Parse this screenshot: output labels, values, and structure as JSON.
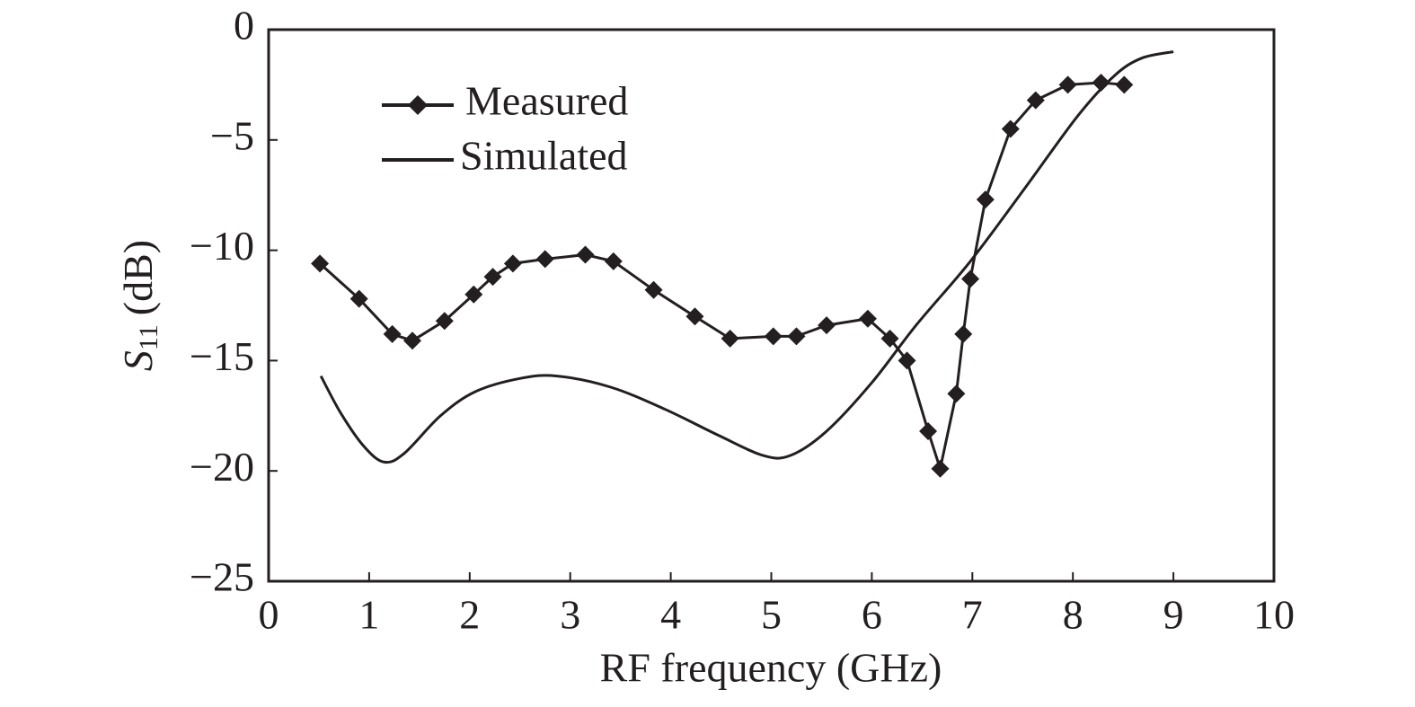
{
  "chart_data": {
    "type": "line",
    "xlabel": "RF frequency (GHz)",
    "ylabel": {
      "symbol": "S",
      "subscript": "11",
      "unit": "(dB)"
    },
    "xlim": [
      0,
      10
    ],
    "xticks": [
      0,
      1,
      2,
      3,
      4,
      5,
      6,
      7,
      8,
      9,
      10
    ],
    "ylim": [
      -25,
      0
    ],
    "yticks": [
      {
        "value": -25,
        "label": "−25"
      },
      {
        "value": -20,
        "label": "−20"
      },
      {
        "value": -15,
        "label": "−15"
      },
      {
        "value": -10,
        "label": "−10"
      },
      {
        "value": -5,
        "label": "−5"
      },
      0
    ],
    "grid": false,
    "legend": "upper left",
    "series": [
      {
        "name": "Measured",
        "color": "#231f20",
        "marker": "diamond",
        "smooth": false,
        "x": [
          0.51,
          0.9,
          1.23,
          1.43,
          1.75,
          2.04,
          2.23,
          2.43,
          2.75,
          3.15,
          3.43,
          3.83,
          4.24,
          4.59,
          5.02,
          5.25,
          5.55,
          5.96,
          6.18,
          6.35,
          6.56,
          6.68,
          6.84,
          6.91,
          6.98,
          7.13,
          7.38,
          7.63,
          7.95,
          8.28,
          8.51
        ],
        "values": [
          -10.6,
          -12.2,
          -13.8,
          -14.1,
          -13.2,
          -12.0,
          -11.2,
          -10.6,
          -10.4,
          -10.2,
          -10.5,
          -11.8,
          -13.0,
          -14.0,
          -13.9,
          -13.9,
          -13.4,
          -13.1,
          -14.0,
          -15.0,
          -18.2,
          -19.9,
          -16.5,
          -13.8,
          -11.3,
          -7.7,
          -4.5,
          -3.2,
          -2.5,
          -2.4,
          -2.5
        ]
      },
      {
        "name": "Simulated",
        "color": "#231f20",
        "marker": "none",
        "smooth": true,
        "x": [
          0.52,
          0.72,
          0.95,
          1.15,
          1.35,
          1.71,
          2.06,
          2.51,
          2.87,
          3.4,
          3.94,
          4.48,
          4.92,
          5.19,
          5.55,
          6.0,
          6.44,
          6.98,
          7.52,
          8.05,
          8.41,
          8.68,
          9.0
        ],
        "values": [
          -15.7,
          -17.4,
          -18.9,
          -19.6,
          -19.2,
          -17.5,
          -16.4,
          -15.8,
          -15.7,
          -16.2,
          -17.2,
          -18.4,
          -19.3,
          -19.3,
          -18.2,
          -16.0,
          -13.4,
          -10.5,
          -7.2,
          -3.9,
          -2.1,
          -1.3,
          -1.0
        ]
      }
    ]
  }
}
